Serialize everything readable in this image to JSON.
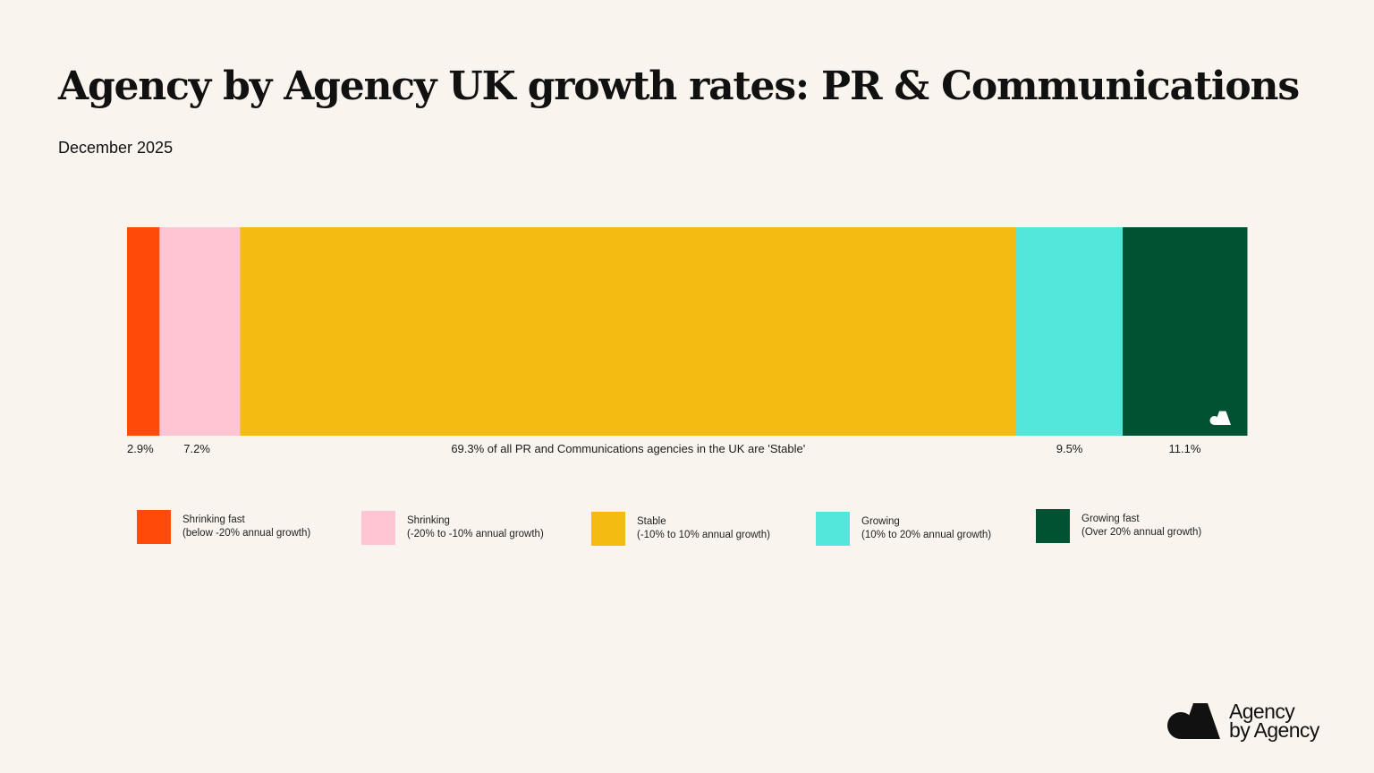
{
  "title": "Agency by Agency UK growth rates: PR & Communications",
  "subtitle": "December 2025",
  "chart_data": {
    "type": "bar",
    "orientation": "horizontal-stacked-100",
    "series": [
      {
        "name": "Shrinking fast",
        "value": 2.9,
        "label": "2.9%",
        "color": "#ff4a0a"
      },
      {
        "name": "Shrinking",
        "value": 7.2,
        "label": "7.2%",
        "color": "#ffc5d3"
      },
      {
        "name": "Stable",
        "value": 69.3,
        "label": "69.3% of all PR and Communications agencies in the UK are 'Stable'",
        "color": "#f4bb12"
      },
      {
        "name": "Growing",
        "value": 9.5,
        "label": "9.5%",
        "color": "#53e6da"
      },
      {
        "name": "Growing fast",
        "value": 11.1,
        "label": "11.1%",
        "color": "#005232"
      }
    ],
    "legend_position": "bottom",
    "grid": false
  },
  "legend": [
    {
      "label": "Shrinking fast",
      "desc": "(below -20% annual growth)",
      "color": "#ff4a0a"
    },
    {
      "label": "Shrinking",
      "desc": "(-20% to -10% annual growth)",
      "color": "#ffc5d3"
    },
    {
      "label": "Stable",
      "desc": "(-10% to 10% annual growth)",
      "color": "#f4bb12"
    },
    {
      "label": "Growing",
      "desc": "(10% to 20% annual growth)",
      "color": "#53e6da"
    },
    {
      "label": "Growing fast",
      "desc": "(Over 20% annual growth)",
      "color": "#005232"
    }
  ],
  "brand": {
    "line1": "Agency",
    "line2": "by Agency",
    "logo_icon": "agency-by-agency-logo"
  }
}
